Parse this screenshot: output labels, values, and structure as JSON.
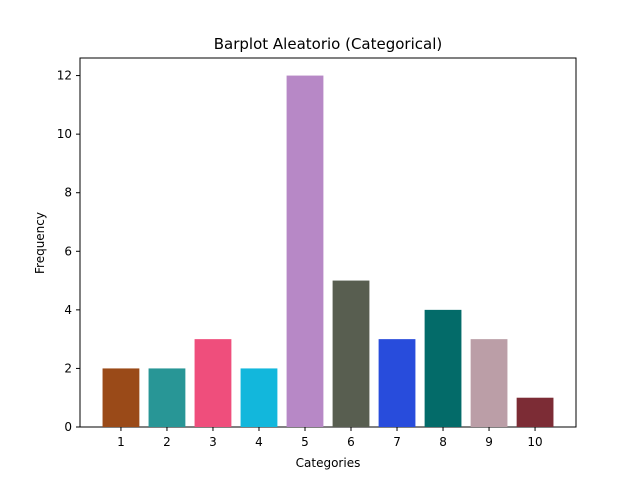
{
  "chart_data": {
    "type": "bar",
    "title": "Barplot Aleatorio (Categorical)",
    "xlabel": "Categories",
    "ylabel": "Frequency",
    "categories": [
      "1",
      "2",
      "3",
      "4",
      "5",
      "6",
      "7",
      "8",
      "9",
      "10"
    ],
    "values": [
      2,
      2,
      3,
      2,
      12,
      5,
      3,
      4,
      3,
      1
    ],
    "colors": [
      "#9a4a18",
      "#289696",
      "#ef4e7c",
      "#12b7dc",
      "#b788c6",
      "#585e50",
      "#284cdc",
      "#036b69",
      "#bb9ea7",
      "#7c2c35"
    ],
    "ylim": [
      0,
      12.6
    ],
    "yticks": [
      0,
      2,
      4,
      6,
      8,
      10,
      12
    ],
    "grid": false,
    "legend": "none"
  }
}
